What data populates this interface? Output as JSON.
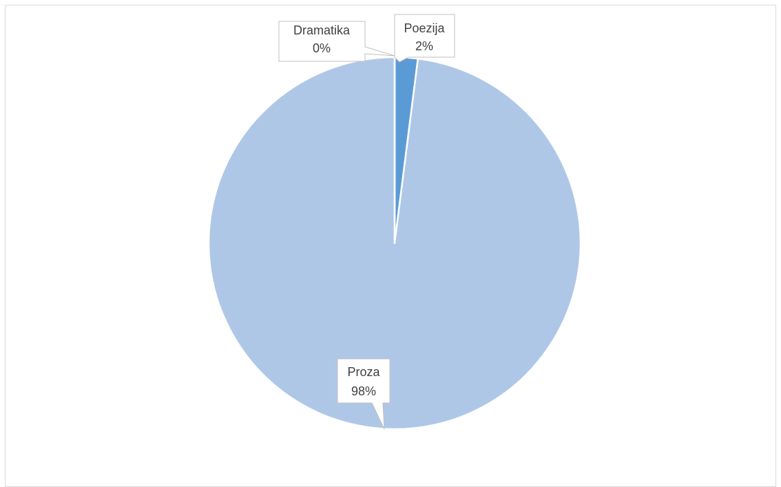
{
  "chart_data": {
    "type": "pie",
    "title": "",
    "categories": [
      "Proza",
      "Poezija",
      "Dramatika"
    ],
    "values": [
      98,
      2,
      0
    ],
    "labels": {
      "Proza": {
        "name": "Proza",
        "percent": "98%"
      },
      "Poezija": {
        "name": "Poezija",
        "percent": "2%"
      },
      "Dramatika": {
        "name": "Dramatika",
        "percent": "0%"
      }
    },
    "colors": {
      "Proza": "#afc7e7",
      "Poezija": "#5b9bd5",
      "Dramatika": "#4472c4",
      "separator": "#ffffff"
    },
    "legend": "none"
  }
}
